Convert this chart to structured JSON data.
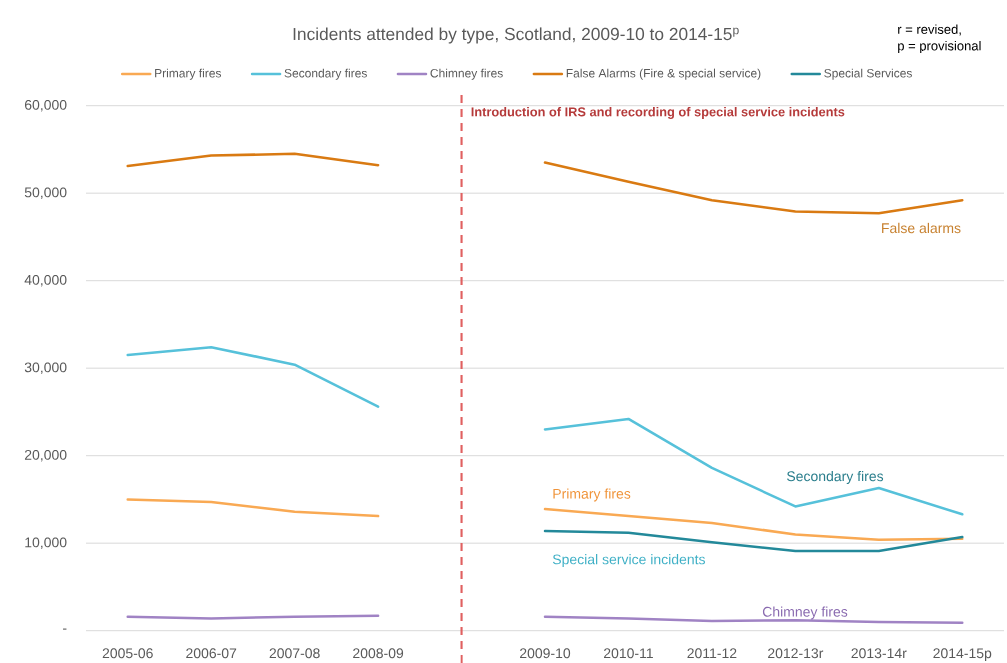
{
  "chart_data": {
    "type": "line",
    "title": "Incidents attended by type, Scotland, 2009-10 to 2014-15$^{p}$",
    "categories": [
      "2005-06",
      "2006-07",
      "2007-08",
      "2008-09",
      null,
      "2009-10",
      "2010-11",
      "2011-12",
      "2012-13r",
      "2013-14r",
      "2014-15p"
    ],
    "series": [
      {
        "name": "Primary fires",
        "color": "#f9a953",
        "values": [
          15000,
          14700,
          13600,
          13100,
          null,
          13900,
          13100,
          12300,
          11000,
          10400,
          10500
        ]
      },
      {
        "name": "Secondary fires",
        "color": "#56c1da",
        "values": [
          31500,
          32400,
          30400,
          25600,
          null,
          23000,
          24200,
          18600,
          14200,
          16300,
          13300
        ]
      },
      {
        "name": "Chimney fires",
        "color": "#a083c4",
        "values": [
          1600,
          1400,
          1600,
          1700,
          null,
          1600,
          1400,
          1100,
          1200,
          1000,
          900
        ]
      },
      {
        "name": "False Alarms (Fire & special service)",
        "color": "#d97a12",
        "values": [
          53100,
          54300,
          54500,
          53200,
          null,
          53500,
          51300,
          49200,
          47900,
          47700,
          49200
        ]
      },
      {
        "name": "Special Services",
        "color": "#23899a",
        "values": [
          null,
          null,
          null,
          null,
          null,
          11400,
          11200,
          10100,
          9100,
          9100,
          10700
        ]
      }
    ],
    "ylim": [
      0,
      60000
    ],
    "yticks": [
      {
        "value": 0,
        "label": "-"
      },
      {
        "value": 10000,
        "label": "10,000"
      },
      {
        "value": 20000,
        "label": "20,000"
      },
      {
        "value": 30000,
        "label": "30,000"
      },
      {
        "value": 40000,
        "label": "40,000"
      },
      {
        "value": 50000,
        "label": "50,000"
      },
      {
        "value": 60000,
        "label": "60,000"
      }
    ],
    "grid": "y",
    "legend": "top",
    "annotations": [
      "r = revised,",
      "p = provisional",
      "Introduction of IRS and recording of special service incidents",
      "False alarms",
      "Secondary fires",
      "Primary fires",
      "Special service incidents",
      "Chimney fires"
    ]
  }
}
